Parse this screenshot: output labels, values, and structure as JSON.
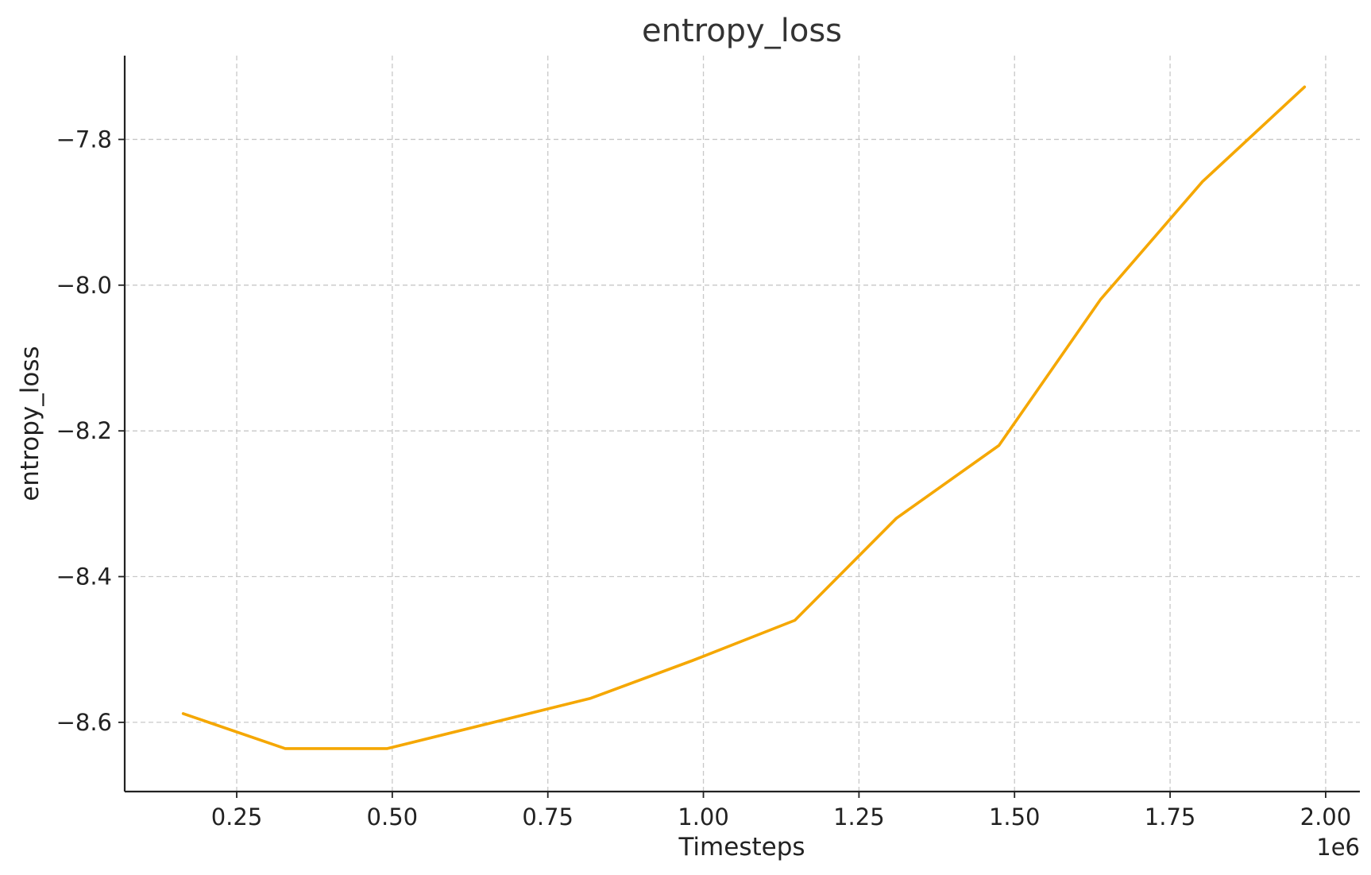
{
  "chart_data": {
    "type": "line",
    "title": "entropy_loss",
    "xlabel": "Timesteps",
    "ylabel": "entropy_loss",
    "x_offset_label": "1e6",
    "x_ticks": [
      0.25,
      0.5,
      0.75,
      1.0,
      1.25,
      1.5,
      1.75,
      2.0
    ],
    "x_tick_labels": [
      "0.25",
      "0.50",
      "0.75",
      "1.00",
      "1.25",
      "1.50",
      "1.75",
      "2.00"
    ],
    "y_ticks": [
      -8.6,
      -8.4,
      -8.2,
      -8.0,
      -7.8
    ],
    "y_tick_labels": [
      "−8.6",
      "−8.4",
      "−8.2",
      "−8.0",
      "−7.8"
    ],
    "xlim": [
      0.07,
      2.055
    ],
    "ylim": [
      -8.695,
      -7.685
    ],
    "grid": true,
    "series": [
      {
        "color": "#f5a700",
        "x": [
          0.164,
          0.328,
          0.492,
          0.819,
          0.983,
          1.147,
          1.31,
          1.475,
          1.638,
          1.802,
          1.966
        ],
        "y": [
          -8.588,
          -8.636,
          -8.636,
          -8.567,
          -8.515,
          -8.46,
          -8.32,
          -8.22,
          -8.02,
          -7.858,
          -7.728
        ]
      }
    ]
  }
}
